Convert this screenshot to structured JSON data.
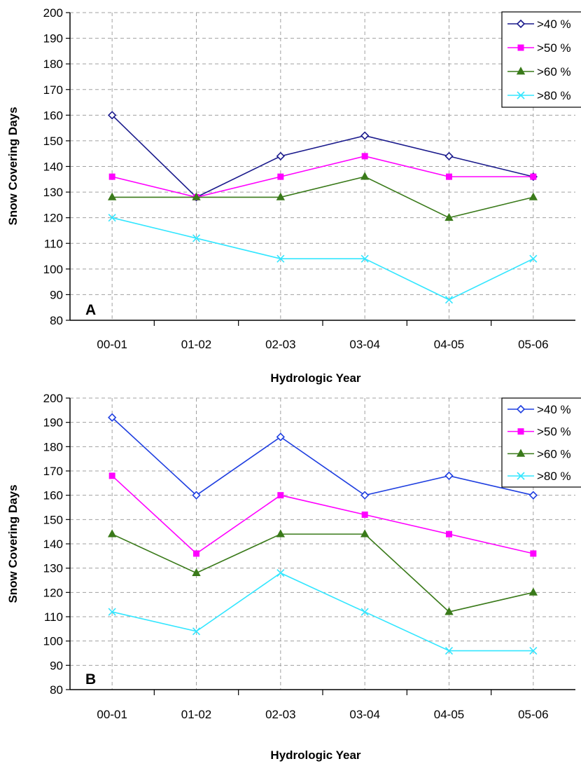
{
  "chart_data": [
    {
      "type": "line",
      "panel_label": "A",
      "categories": [
        "00-01",
        "01-02",
        "02-03",
        "03-04",
        "04-05",
        "05-06"
      ],
      "xlabel": "Hydrologic Year",
      "ylabel": "Snow Covering Days",
      "ylim": [
        80,
        200
      ],
      "ytick_step": 10,
      "grid": true,
      "legend_position": "top-right",
      "series": [
        {
          "name": ">40 %",
          "color": "#1a1a8c",
          "marker": "diamond-open",
          "values": [
            160,
            128,
            144,
            152,
            144,
            136
          ]
        },
        {
          "name": ">50 %",
          "color": "#ff00ff",
          "marker": "square",
          "values": [
            136,
            128,
            136,
            144,
            136,
            136
          ]
        },
        {
          "name": ">60 %",
          "color": "#3a7a1a",
          "marker": "triangle",
          "values": [
            128,
            128,
            128,
            136,
            120,
            128
          ]
        },
        {
          "name": ">80 %",
          "color": "#33e6ff",
          "marker": "x",
          "values": [
            120,
            112,
            104,
            104,
            88,
            104
          ]
        }
      ]
    },
    {
      "type": "line",
      "panel_label": "B",
      "categories": [
        "00-01",
        "01-02",
        "02-03",
        "03-04",
        "04-05",
        "05-06"
      ],
      "xlabel": "Hydrologic Year",
      "ylabel": "Snow Covering Days",
      "ylim": [
        80,
        200
      ],
      "ytick_step": 10,
      "grid": true,
      "legend_position": "top-right",
      "series": [
        {
          "name": ">40 %",
          "color": "#1f3fe0",
          "marker": "diamond-open",
          "values": [
            192,
            160,
            184,
            160,
            168,
            160
          ]
        },
        {
          "name": ">50 %",
          "color": "#ff00ff",
          "marker": "square",
          "values": [
            168,
            136,
            160,
            152,
            144,
            136
          ]
        },
        {
          "name": ">60 %",
          "color": "#3a7a1a",
          "marker": "triangle",
          "values": [
            144,
            128,
            144,
            144,
            112,
            120
          ]
        },
        {
          "name": ">80 %",
          "color": "#33e6ff",
          "marker": "x",
          "values": [
            112,
            104,
            128,
            112,
            96,
            96
          ]
        }
      ]
    }
  ]
}
